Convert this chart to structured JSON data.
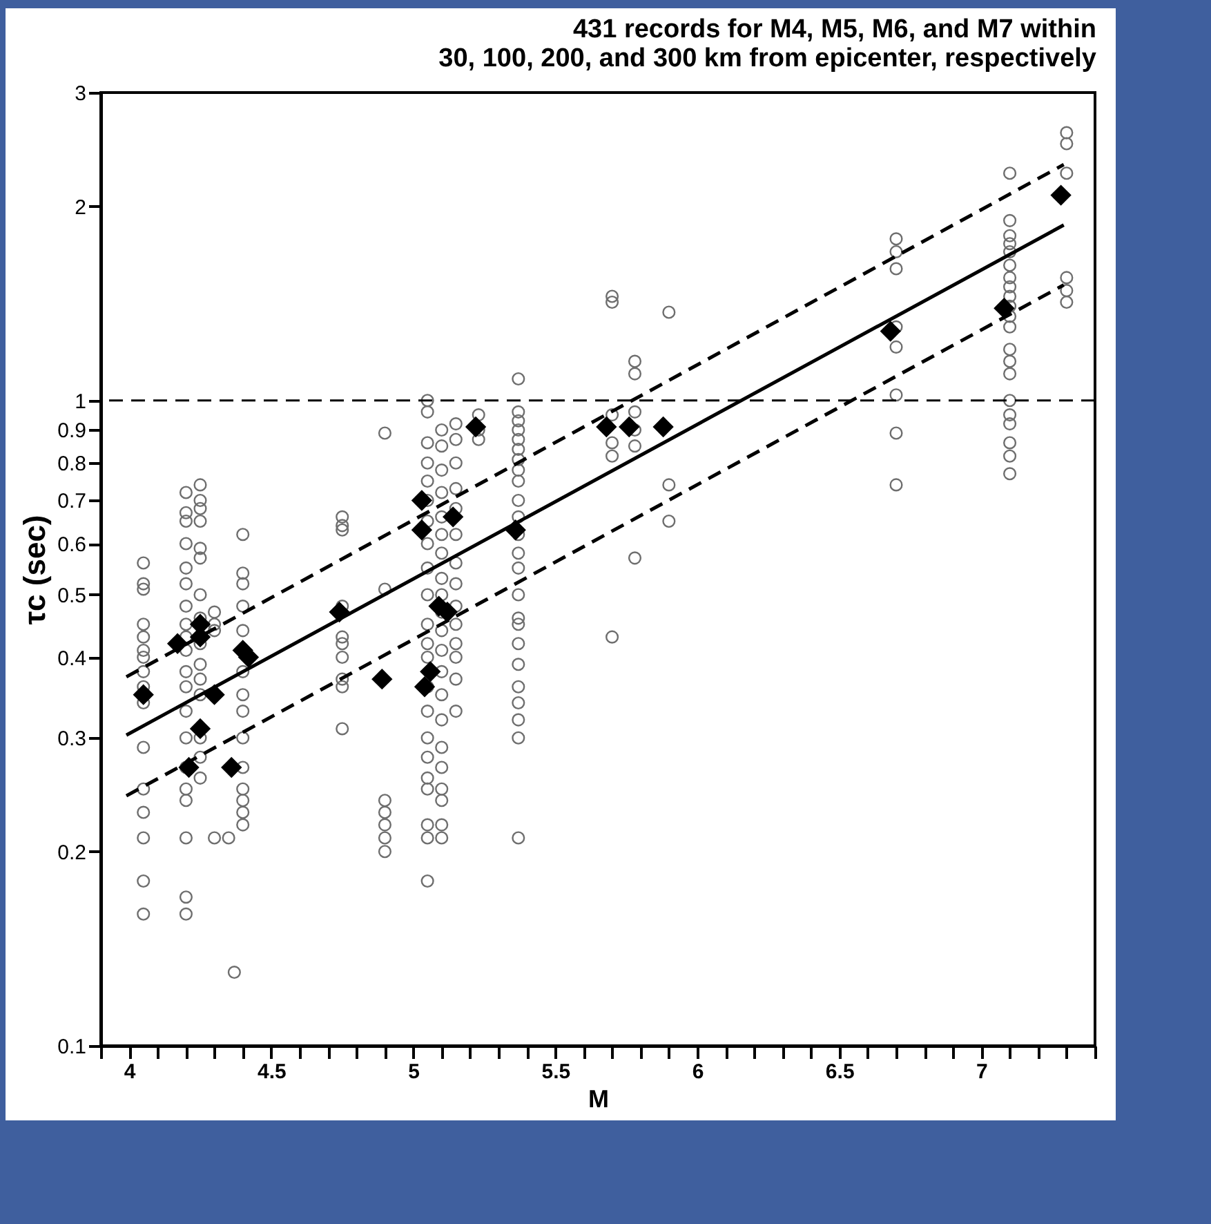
{
  "chart_data": {
    "type": "scatter",
    "title": "431 records  for M4, M5, M6, and M7 within\n30, 100, 200, and 300 km from epicenter, respectively",
    "xlabel": "M",
    "ylabel": "τc (sec)",
    "log": "y",
    "grid": false,
    "xlim": [
      3.9,
      7.4
    ],
    "xticks": [
      {
        "value": 3.9,
        "label": null
      },
      4,
      {
        "value": 4.1,
        "label": null
      },
      {
        "value": 4.2,
        "label": null
      },
      {
        "value": 4.3,
        "label": null
      },
      {
        "value": 4.4,
        "label": null
      },
      4.5,
      {
        "value": 4.6,
        "label": null
      },
      {
        "value": 4.7,
        "label": null
      },
      {
        "value": 4.8,
        "label": null
      },
      {
        "value": 4.9,
        "label": null
      },
      5,
      {
        "value": 5.1,
        "label": null
      },
      {
        "value": 5.2,
        "label": null
      },
      {
        "value": 5.3,
        "label": null
      },
      {
        "value": 5.4,
        "label": null
      },
      5.5,
      {
        "value": 5.6,
        "label": null
      },
      {
        "value": 5.7,
        "label": null
      },
      {
        "value": 5.8,
        "label": null
      },
      {
        "value": 5.9,
        "label": null
      },
      6,
      {
        "value": 6.1,
        "label": null
      },
      {
        "value": 6.2,
        "label": null
      },
      {
        "value": 6.3,
        "label": null
      },
      {
        "value": 6.4,
        "label": null
      },
      6.5,
      {
        "value": 6.6,
        "label": null
      },
      {
        "value": 6.7,
        "label": null
      },
      {
        "value": 6.8,
        "label": null
      },
      {
        "value": 6.9,
        "label": null
      },
      7,
      {
        "value": 7.1,
        "label": null
      },
      {
        "value": 7.2,
        "label": null
      },
      {
        "value": 7.3,
        "label": null
      },
      {
        "value": 7.4,
        "label": null
      }
    ],
    "ylim": [
      0.1,
      3
    ],
    "yticks": [
      0.1,
      0.2,
      0.3,
      0.4,
      0.5,
      0.6,
      0.7,
      0.8,
      0.9,
      1,
      2,
      3
    ],
    "ref_lines": [
      {
        "axis": "y",
        "value": 1,
        "color": "#000000",
        "line_style": "dashed"
      }
    ],
    "series": [
      {
        "marker": "circle",
        "color": "#6e6e6e",
        "x": [
          4.05,
          4.05,
          4.05,
          4.05,
          4.05,
          4.05,
          4.05,
          4.05,
          4.05,
          4.05,
          4.05,
          4.05,
          4.05,
          4.05,
          4.05,
          4.05,
          4.2,
          4.2,
          4.2,
          4.2,
          4.2,
          4.2,
          4.2,
          4.2,
          4.2,
          4.2,
          4.2,
          4.2,
          4.2,
          4.2,
          4.2,
          4.2,
          4.2,
          4.2,
          4.2,
          4.2,
          4.25,
          4.25,
          4.25,
          4.25,
          4.25,
          4.25,
          4.25,
          4.25,
          4.25,
          4.25,
          4.25,
          4.25,
          4.25,
          4.25,
          4.25,
          4.3,
          4.3,
          4.3,
          4.3,
          4.35,
          4.37,
          4.4,
          4.4,
          4.4,
          4.4,
          4.4,
          4.4,
          4.4,
          4.4,
          4.4,
          4.4,
          4.4,
          4.4,
          4.4,
          4.4,
          4.75,
          4.75,
          4.75,
          4.75,
          4.75,
          4.75,
          4.75,
          4.75,
          4.75,
          4.75,
          4.9,
          4.9,
          4.9,
          4.9,
          4.9,
          4.9,
          4.9,
          5.05,
          5.05,
          5.05,
          5.05,
          5.05,
          5.05,
          5.05,
          5.05,
          5.05,
          5.05,
          5.05,
          5.05,
          5.05,
          5.05,
          5.05,
          5.05,
          5.05,
          5.05,
          5.05,
          5.05,
          5.05,
          5.05,
          5.1,
          5.1,
          5.1,
          5.1,
          5.1,
          5.1,
          5.1,
          5.1,
          5.1,
          5.1,
          5.1,
          5.1,
          5.1,
          5.1,
          5.1,
          5.1,
          5.1,
          5.1,
          5.1,
          5.1,
          5.1,
          5.15,
          5.15,
          5.15,
          5.15,
          5.15,
          5.15,
          5.15,
          5.15,
          5.15,
          5.15,
          5.15,
          5.15,
          5.15,
          5.15,
          5.23,
          5.23,
          5.23,
          5.37,
          5.37,
          5.37,
          5.37,
          5.37,
          5.37,
          5.37,
          5.37,
          5.37,
          5.37,
          5.37,
          5.37,
          5.37,
          5.37,
          5.37,
          5.37,
          5.37,
          5.37,
          5.37,
          5.37,
          5.37,
          5.37,
          5.37,
          5.37,
          5.7,
          5.7,
          5.7,
          5.7,
          5.7,
          5.7,
          5.78,
          5.78,
          5.78,
          5.78,
          5.78,
          5.78,
          5.9,
          5.9,
          5.9,
          6.7,
          6.7,
          6.7,
          6.7,
          6.7,
          6.7,
          6.7,
          6.7,
          7.1,
          7.1,
          7.1,
          7.1,
          7.1,
          7.1,
          7.1,
          7.1,
          7.1,
          7.1,
          7.1,
          7.1,
          7.1,
          7.1,
          7.1,
          7.1,
          7.1,
          7.1,
          7.1,
          7.1,
          7.1,
          7.3,
          7.3,
          7.3,
          7.3,
          7.3,
          7.3
        ],
        "values": [
          0.56,
          0.52,
          0.51,
          0.45,
          0.43,
          0.41,
          0.4,
          0.38,
          0.36,
          0.34,
          0.29,
          0.25,
          0.23,
          0.21,
          0.18,
          0.16,
          0.72,
          0.67,
          0.65,
          0.6,
          0.55,
          0.52,
          0.48,
          0.45,
          0.43,
          0.41,
          0.38,
          0.36,
          0.33,
          0.3,
          0.27,
          0.25,
          0.24,
          0.21,
          0.17,
          0.16,
          0.74,
          0.7,
          0.68,
          0.65,
          0.59,
          0.57,
          0.5,
          0.46,
          0.42,
          0.39,
          0.37,
          0.35,
          0.3,
          0.28,
          0.26,
          0.47,
          0.45,
          0.44,
          0.21,
          0.21,
          0.13,
          0.62,
          0.54,
          0.52,
          0.48,
          0.44,
          0.38,
          0.35,
          0.33,
          0.3,
          0.27,
          0.25,
          0.24,
          0.23,
          0.22,
          0.66,
          0.64,
          0.63,
          0.48,
          0.43,
          0.42,
          0.4,
          0.37,
          0.36,
          0.31,
          0.89,
          0.51,
          0.24,
          0.23,
          0.22,
          0.21,
          0.2,
          1,
          0.96,
          0.86,
          0.8,
          0.75,
          0.7,
          0.65,
          0.6,
          0.55,
          0.5,
          0.45,
          0.42,
          0.4,
          0.36,
          0.33,
          0.3,
          0.28,
          0.26,
          0.25,
          0.22,
          0.21,
          0.18,
          0.9,
          0.85,
          0.78,
          0.72,
          0.66,
          0.62,
          0.58,
          0.53,
          0.5,
          0.47,
          0.44,
          0.41,
          0.38,
          0.35,
          0.32,
          0.29,
          0.27,
          0.25,
          0.24,
          0.22,
          0.21,
          0.92,
          0.87,
          0.8,
          0.73,
          0.68,
          0.62,
          0.56,
          0.52,
          0.48,
          0.45,
          0.42,
          0.4,
          0.37,
          0.33,
          0.95,
          0.9,
          0.87,
          1.08,
          0.96,
          0.93,
          0.9,
          0.87,
          0.84,
          0.81,
          0.78,
          0.75,
          0.7,
          0.66,
          0.62,
          0.58,
          0.55,
          0.5,
          0.46,
          0.45,
          0.42,
          0.39,
          0.36,
          0.34,
          0.32,
          0.3,
          0.21,
          1.45,
          1.42,
          0.95,
          0.86,
          0.82,
          0.43,
          1.15,
          1.1,
          0.96,
          0.9,
          0.85,
          0.57,
          1.37,
          0.74,
          0.65,
          1.78,
          1.7,
          1.6,
          1.3,
          1.21,
          1.02,
          0.89,
          0.74,
          2.25,
          1.9,
          1.8,
          1.75,
          1.7,
          1.62,
          1.55,
          1.5,
          1.45,
          1.4,
          1.35,
          1.3,
          1.2,
          1.15,
          1.1,
          1,
          0.95,
          0.92,
          0.86,
          0.82,
          0.77,
          2.6,
          2.5,
          2.25,
          1.55,
          1.48,
          1.42
        ]
      },
      {
        "type": "line",
        "marker": "none",
        "line_style": "dashed",
        "color": "#000000",
        "x": [
          3.99,
          7.29
        ],
        "values": [
          0.373,
          2.32
        ]
      },
      {
        "type": "line",
        "marker": "none",
        "line_style": "solid",
        "color": "#000000",
        "x": [
          3.99,
          7.29
        ],
        "values": [
          0.303,
          1.87
        ]
      },
      {
        "type": "line",
        "marker": "none",
        "line_style": "dashed",
        "color": "#000000",
        "x": [
          3.99,
          7.29
        ],
        "values": [
          0.244,
          1.51
        ]
      },
      {
        "marker": "diamond",
        "color": "#000000",
        "x": [
          4.05,
          4.17,
          4.21,
          4.25,
          4.25,
          4.25,
          4.3,
          4.36,
          4.4,
          4.42,
          4.74,
          4.89,
          5.03,
          5.03,
          5.04,
          5.06,
          5.09,
          5.12,
          5.14,
          5.22,
          5.36,
          5.68,
          5.76,
          5.88,
          6.68,
          7.08,
          7.28
        ],
        "values": [
          0.35,
          0.42,
          0.27,
          0.43,
          0.45,
          0.31,
          0.35,
          0.27,
          0.41,
          0.4,
          0.47,
          0.37,
          0.63,
          0.7,
          0.36,
          0.38,
          0.48,
          0.47,
          0.66,
          0.91,
          0.63,
          0.91,
          0.91,
          0.91,
          1.28,
          1.39,
          2.08
        ]
      }
    ]
  }
}
